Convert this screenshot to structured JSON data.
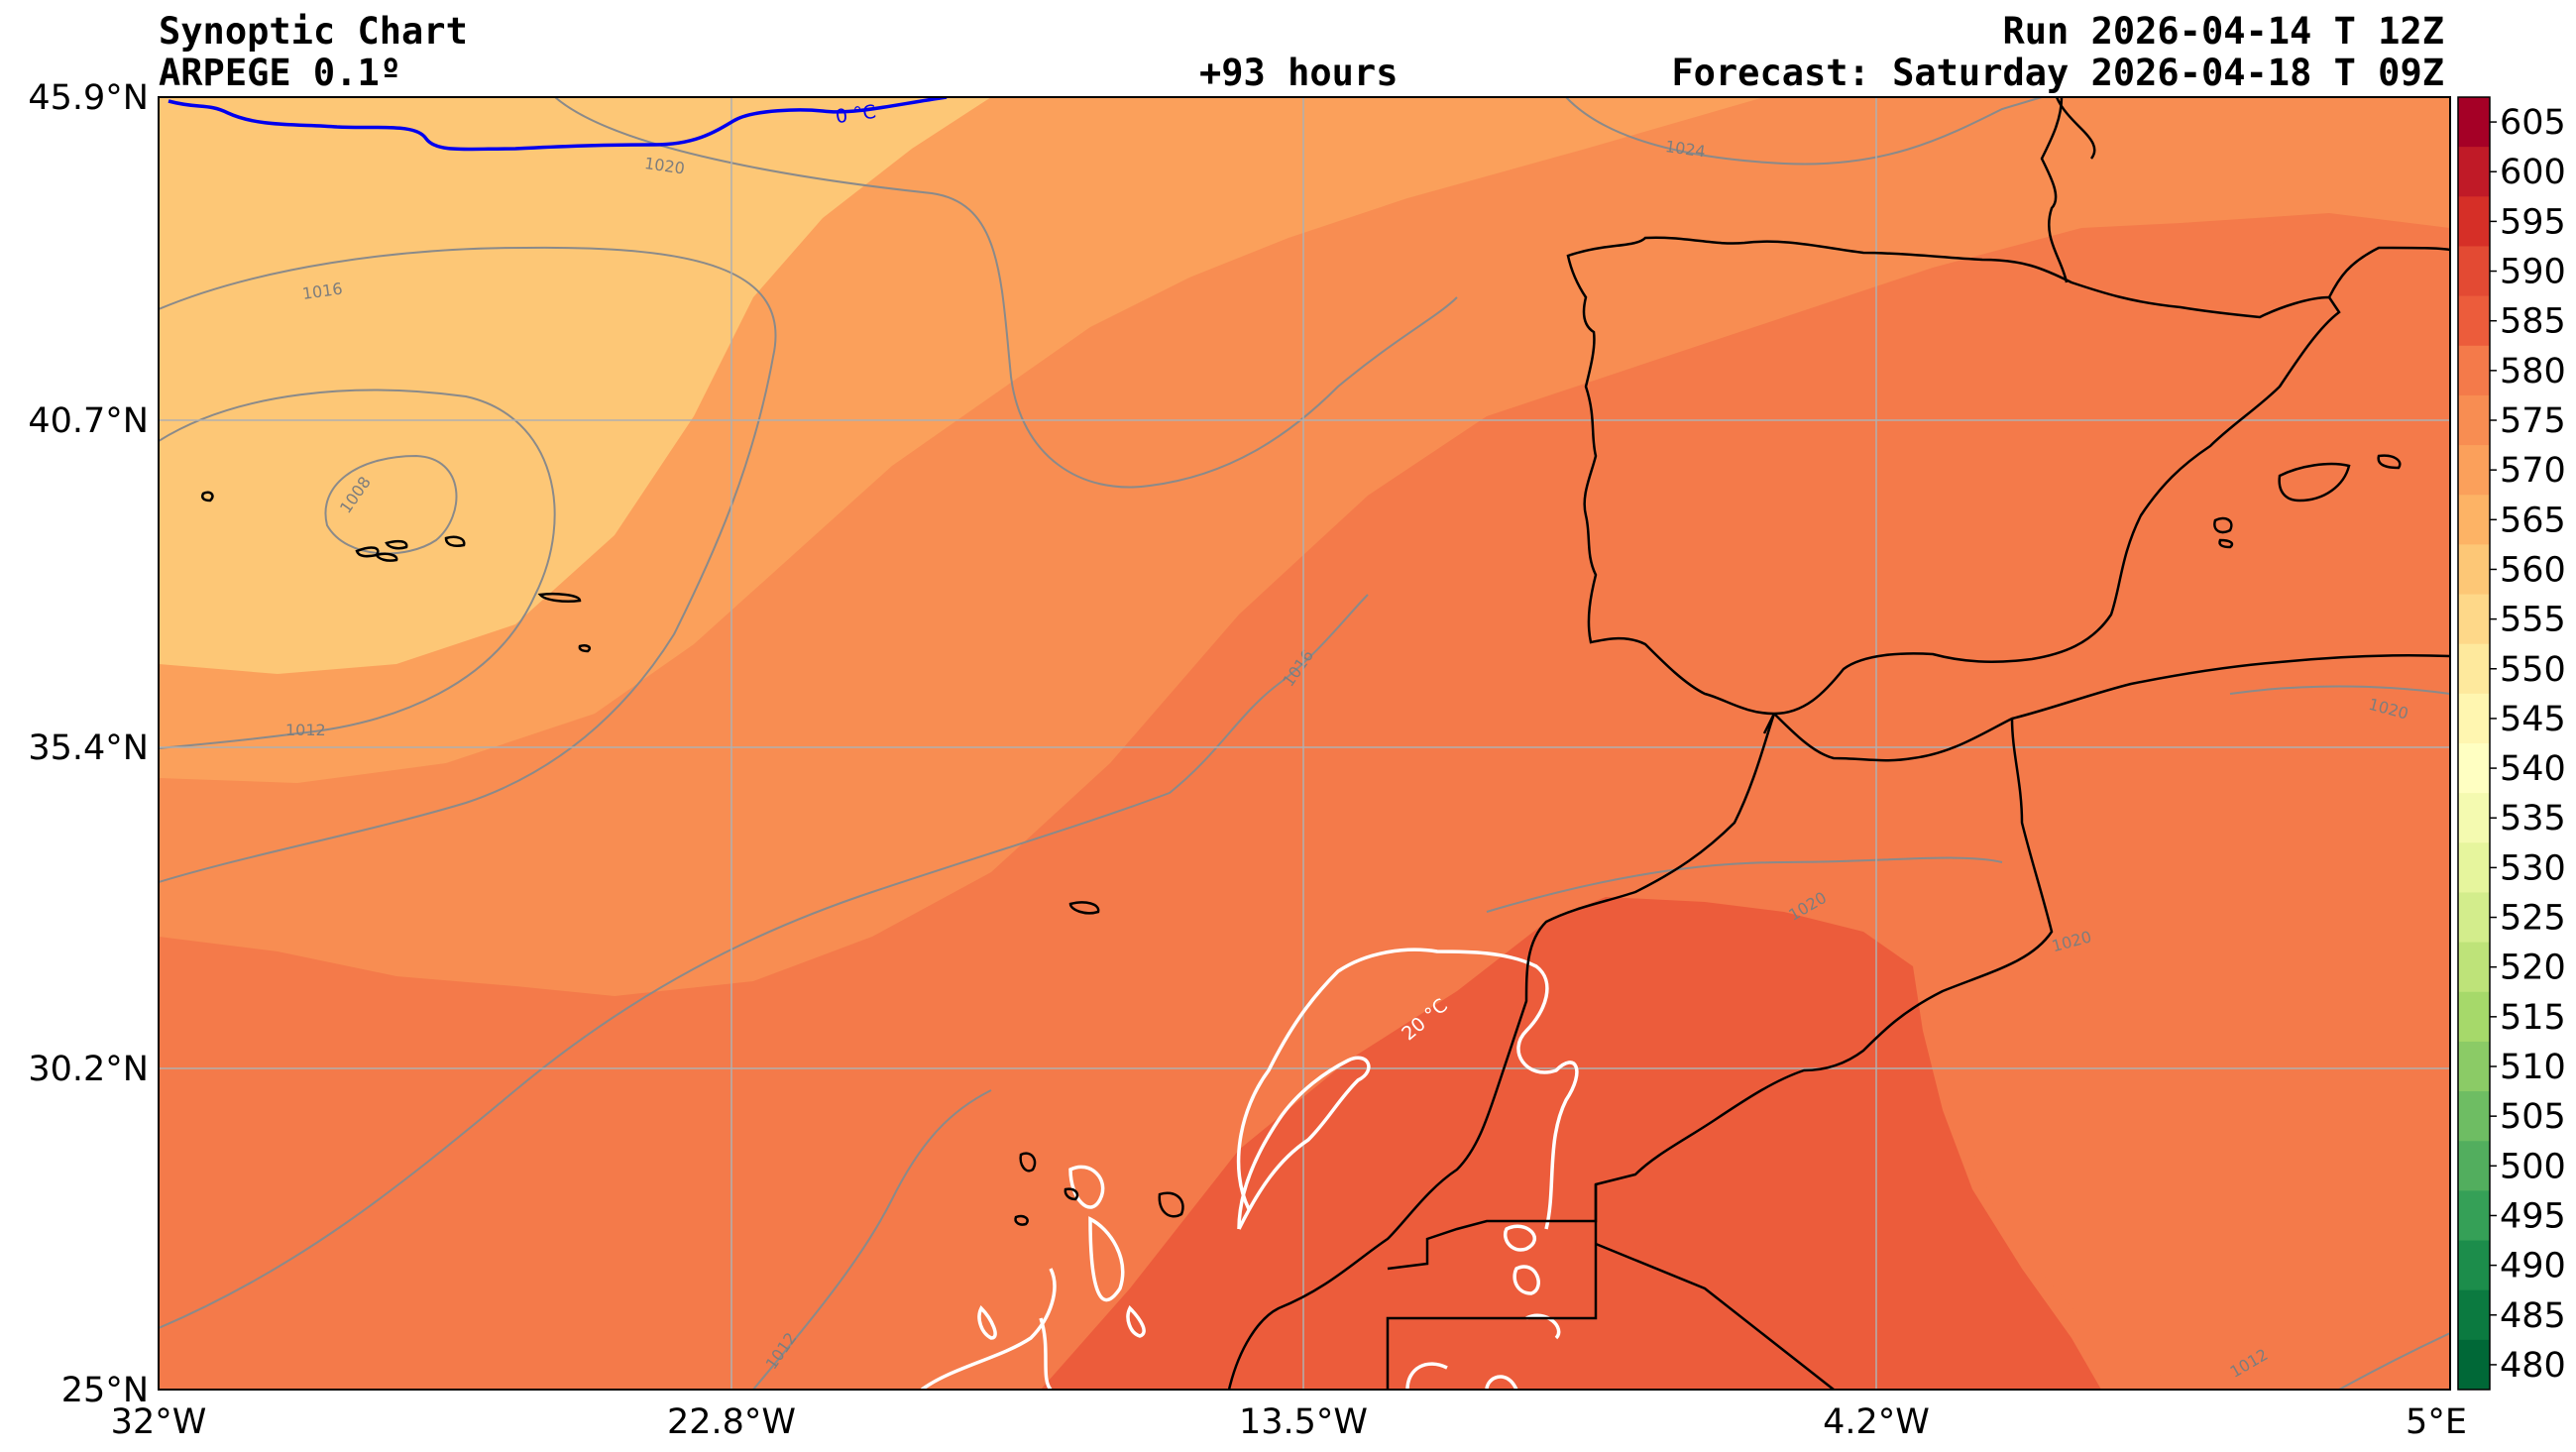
{
  "header": {
    "title_line1": "Synoptic Chart",
    "title_line2": "ARPEGE 0.1º",
    "lead_time": "+93 hours",
    "run": "Run 2026-04-14 T 12Z",
    "forecast": "Forecast: Saturday 2026-04-18 T 09Z"
  },
  "map": {
    "lat_labels": [
      "45.9°N",
      "40.7°N",
      "35.4°N",
      "30.2°N",
      "25°N"
    ],
    "lon_labels": [
      "32°W",
      "22.8°W",
      "13.5°W",
      "4.2°W",
      "5°E"
    ],
    "isobar_labels": [
      "1008",
      "1012",
      "1016",
      "1016",
      "1020",
      "1020",
      "1024",
      "1012",
      "1012",
      "1020",
      "1020"
    ],
    "isotherm_labels": [
      "0 °C",
      "20 °C"
    ],
    "colors": {
      "isotherm_cold": "#0000ee",
      "isotherm_warm": "#ffffff",
      "isobar": "#8a8a8a",
      "coastline": "#000000",
      "grid": "#b0b0b0"
    }
  },
  "colorbar": {
    "labels": [
      "605",
      "600",
      "595",
      "590",
      "585",
      "580",
      "575",
      "570",
      "565",
      "560",
      "555",
      "550",
      "545",
      "540",
      "535",
      "530",
      "525",
      "520",
      "515",
      "510",
      "505",
      "500",
      "495",
      "490",
      "485",
      "480"
    ],
    "colors": [
      "#a50026",
      "#c01a27",
      "#d62f27",
      "#e34a33",
      "#ec5c3b",
      "#f47a4a",
      "#f88d52",
      "#fba05b",
      "#fdb365",
      "#fdc776",
      "#fed889",
      "#fee99d",
      "#fff6b0",
      "#ffffc2",
      "#f4fab0",
      "#e6f59d",
      "#d3ed8c",
      "#bee379",
      "#a6d96a",
      "#8bcb66",
      "#6ebd63",
      "#52ae5e",
      "#35a057",
      "#1c8d4b",
      "#0b7a40",
      "#006837"
    ]
  }
}
